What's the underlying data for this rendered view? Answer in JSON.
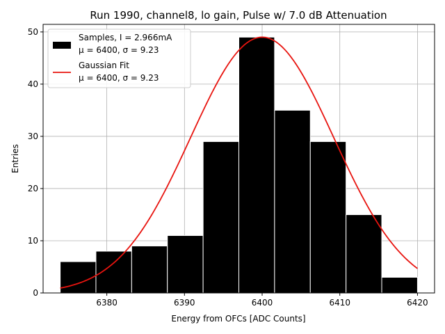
{
  "chart_data": {
    "type": "bar",
    "title": "Run 1990, channel8, lo gain, Pulse w/ 7.0 dB Attenuation",
    "xlabel": "Energy from OFCs [ADC Counts]",
    "ylabel": "Entries",
    "xlim": [
      6371.8,
      6422.2
    ],
    "ylim": [
      0,
      51.45
    ],
    "xticks": [
      6380,
      6390,
      6400,
      6410,
      6420
    ],
    "yticks": [
      0,
      10,
      20,
      30,
      40,
      50
    ],
    "grid": true,
    "legend_position": "top-left",
    "bins": [
      {
        "x0": 6374.0,
        "x1": 6378.6,
        "count": 6
      },
      {
        "x0": 6378.6,
        "x1": 6383.2,
        "count": 8
      },
      {
        "x0": 6383.2,
        "x1": 6387.8,
        "count": 9
      },
      {
        "x0": 6387.8,
        "x1": 6392.4,
        "count": 11
      },
      {
        "x0": 6392.4,
        "x1": 6397.0,
        "count": 29
      },
      {
        "x0": 6397.0,
        "x1": 6401.6,
        "count": 49
      },
      {
        "x0": 6401.6,
        "x1": 6406.2,
        "count": 35
      },
      {
        "x0": 6406.2,
        "x1": 6410.8,
        "count": 29
      },
      {
        "x0": 6410.8,
        "x1": 6415.4,
        "count": 15
      },
      {
        "x0": 6415.4,
        "x1": 6420.0,
        "count": 3
      }
    ],
    "fit": {
      "type": "gaussian",
      "amplitude": 49,
      "mu": 6400,
      "sigma": 9.23,
      "x_range": [
        6374,
        6420
      ]
    },
    "series": [
      {
        "name": "Samples, I = 2.966mA",
        "stats": "μ = 6400, σ = 9.23",
        "color": "#000000",
        "kind": "histogram"
      },
      {
        "name": "Gaussian Fit",
        "stats": "μ = 6400, σ = 9.23",
        "color": "#e8140f",
        "kind": "line"
      }
    ]
  }
}
